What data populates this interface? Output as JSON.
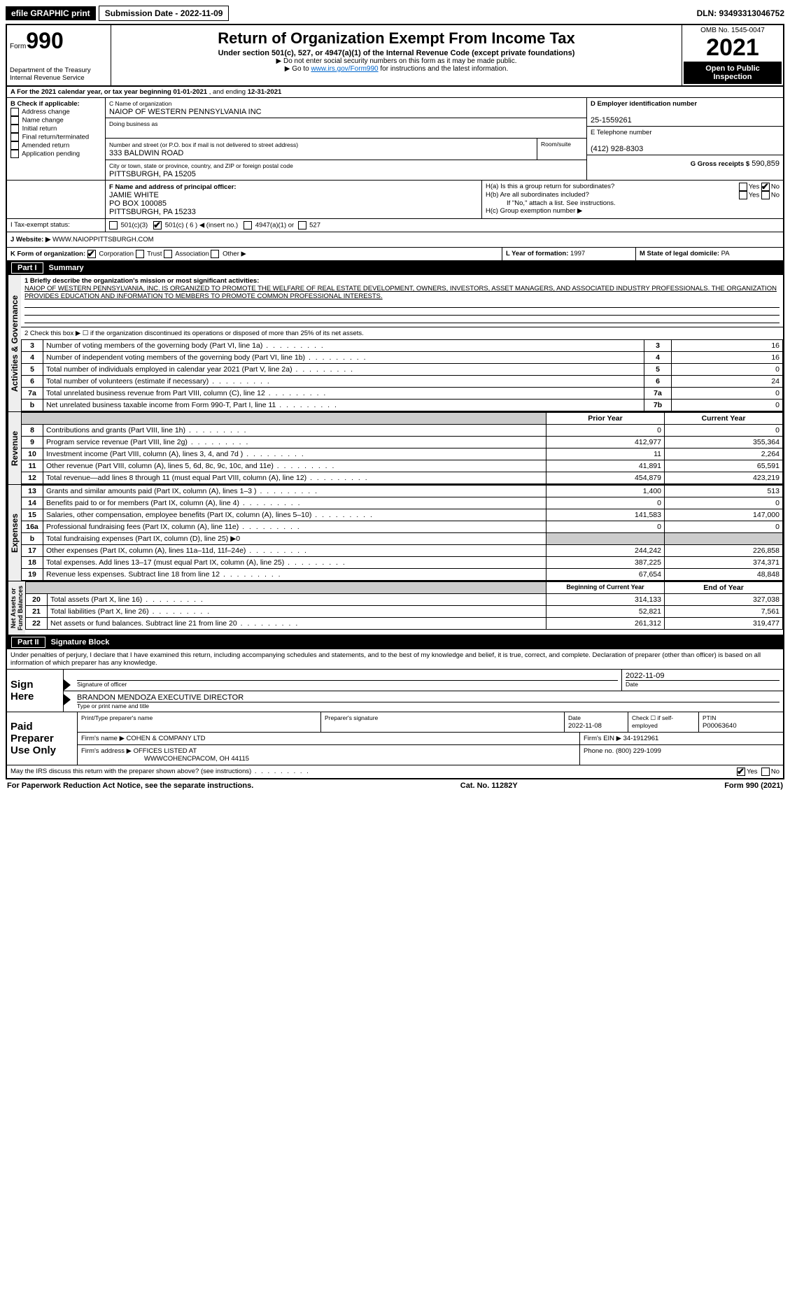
{
  "topbar": {
    "efile": "efile GRAPHIC print",
    "submission_label": "Submission Date - 2022-11-09",
    "dln": "DLN: 93493313046752"
  },
  "header": {
    "form_word": "Form",
    "form_number": "990",
    "dept": "Department of the Treasury",
    "irs": "Internal Revenue Service",
    "title": "Return of Organization Exempt From Income Tax",
    "subtitle": "Under section 501(c), 527, or 4947(a)(1) of the Internal Revenue Code (except private foundations)",
    "note1": "▶ Do not enter social security numbers on this form as it may be made public.",
    "note2": "▶ Go to ",
    "note2_link": "www.irs.gov/Form990",
    "note2_after": " for instructions and the latest information.",
    "omb": "OMB No. 1545-0047",
    "year": "2021",
    "open": "Open to Public Inspection"
  },
  "period": {
    "label_a": "A For the 2021 calendar year, or tax year beginning ",
    "begin": "01-01-2021",
    "mid": " , and ending ",
    "end": "12-31-2021"
  },
  "boxB": {
    "label": "B Check if applicable:",
    "items": [
      "Address change",
      "Name change",
      "Initial return",
      "Final return/terminated",
      "Amended return",
      "Application pending"
    ]
  },
  "boxC": {
    "name_label": "C Name of organization",
    "name": "NAIOP OF WESTERN PENNSYLVANIA INC",
    "dba_label": "Doing business as",
    "dba": "",
    "street_label": "Number and street (or P.O. box if mail is not delivered to street address)",
    "room_label": "Room/suite",
    "street": "333 BALDWIN ROAD",
    "city_label": "City or town, state or province, country, and ZIP or foreign postal code",
    "city": "PITTSBURGH, PA  15205"
  },
  "boxD": {
    "label": "D Employer identification number",
    "value": "25-1559261"
  },
  "boxE": {
    "label": "E Telephone number",
    "value": "(412) 928-8303"
  },
  "boxG": {
    "label": "G Gross receipts $",
    "value": "590,859"
  },
  "boxF": {
    "label": "F Name and address of principal officer:",
    "name": "JAMIE WHITE",
    "addr1": "PO BOX 100085",
    "addr2": "PITTSBURGH, PA  15233"
  },
  "boxH": {
    "a_label": "H(a)  Is this a group return for subordinates?",
    "a_yes": "Yes",
    "a_no": "No",
    "b_label": "H(b)  Are all subordinates included?",
    "b_note": "If \"No,\" attach a list. See instructions.",
    "c_label": "H(c)  Group exemption number ▶"
  },
  "boxI": {
    "label": "I Tax-exempt status:",
    "opts": [
      "501(c)(3)",
      "501(c) ( 6 ) ◀ (insert no.)",
      "4947(a)(1) or",
      "527"
    ]
  },
  "boxJ": {
    "label": "J Website: ▶",
    "value": "WWW.NAIOPPITTSBURGH.COM"
  },
  "boxK": {
    "label": "K Form of organization:",
    "opts": [
      "Corporation",
      "Trust",
      "Association",
      "Other ▶"
    ]
  },
  "boxL": {
    "label": "L Year of formation:",
    "value": "1997"
  },
  "boxM": {
    "label": "M State of legal domicile:",
    "value": "PA"
  },
  "part1": {
    "title": "Part I",
    "name": "Summary",
    "q1_label": "1 Briefly describe the organization's mission or most significant activities:",
    "q1_text": "NAIOP OF WESTERN PENNSYLVANIA, INC. IS ORGANIZED TO PROMOTE THE WELFARE OF REAL ESTATE DEVELOPMENT, OWNERS, INVESTORS, ASSET MANAGERS, AND ASSOCIATED INDUSTRY PROFESSIONALS. THE ORGANIZATION PROVIDES EDUCATION AND INFORMATION TO MEMBERS TO PROMOTE COMMON PROFESSIONAL INTERESTS.",
    "q2": "2  Check this box ▶ ☐ if the organization discontinued its operations or disposed of more than 25% of its net assets.",
    "lines_gov": [
      {
        "n": "3",
        "t": "Number of voting members of the governing body (Part VI, line 1a)",
        "box": "3",
        "v": "16"
      },
      {
        "n": "4",
        "t": "Number of independent voting members of the governing body (Part VI, line 1b)",
        "box": "4",
        "v": "16"
      },
      {
        "n": "5",
        "t": "Total number of individuals employed in calendar year 2021 (Part V, line 2a)",
        "box": "5",
        "v": "0"
      },
      {
        "n": "6",
        "t": "Total number of volunteers (estimate if necessary)",
        "box": "6",
        "v": "24"
      },
      {
        "n": "7a",
        "t": "Total unrelated business revenue from Part VIII, column (C), line 12",
        "box": "7a",
        "v": "0"
      },
      {
        "n": "b",
        "t": "Net unrelated business taxable income from Form 990-T, Part I, line 11",
        "box": "7b",
        "v": "0"
      }
    ],
    "col_prior": "Prior Year",
    "col_current": "Current Year",
    "revenue": [
      {
        "n": "8",
        "t": "Contributions and grants (Part VIII, line 1h)",
        "p": "0",
        "c": "0"
      },
      {
        "n": "9",
        "t": "Program service revenue (Part VIII, line 2g)",
        "p": "412,977",
        "c": "355,364"
      },
      {
        "n": "10",
        "t": "Investment income (Part VIII, column (A), lines 3, 4, and 7d )",
        "p": "11",
        "c": "2,264"
      },
      {
        "n": "11",
        "t": "Other revenue (Part VIII, column (A), lines 5, 6d, 8c, 9c, 10c, and 11e)",
        "p": "41,891",
        "c": "65,591"
      },
      {
        "n": "12",
        "t": "Total revenue—add lines 8 through 11 (must equal Part VIII, column (A), line 12)",
        "p": "454,879",
        "c": "423,219"
      }
    ],
    "expenses": [
      {
        "n": "13",
        "t": "Grants and similar amounts paid (Part IX, column (A), lines 1–3 )",
        "p": "1,400",
        "c": "513"
      },
      {
        "n": "14",
        "t": "Benefits paid to or for members (Part IX, column (A), line 4)",
        "p": "0",
        "c": "0"
      },
      {
        "n": "15",
        "t": "Salaries, other compensation, employee benefits (Part IX, column (A), lines 5–10)",
        "p": "141,583",
        "c": "147,000"
      },
      {
        "n": "16a",
        "t": "Professional fundraising fees (Part IX, column (A), line 11e)",
        "p": "0",
        "c": "0"
      },
      {
        "n": "b",
        "t": "Total fundraising expenses (Part IX, column (D), line 25) ▶0",
        "p": "",
        "c": "",
        "shade": true
      },
      {
        "n": "17",
        "t": "Other expenses (Part IX, column (A), lines 11a–11d, 11f–24e)",
        "p": "244,242",
        "c": "226,858"
      },
      {
        "n": "18",
        "t": "Total expenses. Add lines 13–17 (must equal Part IX, column (A), line 25)",
        "p": "387,225",
        "c": "374,371"
      },
      {
        "n": "19",
        "t": "Revenue less expenses. Subtract line 18 from line 12",
        "p": "67,654",
        "c": "48,848"
      }
    ],
    "col_begin": "Beginning of Current Year",
    "col_end": "End of Year",
    "netassets": [
      {
        "n": "20",
        "t": "Total assets (Part X, line 16)",
        "p": "314,133",
        "c": "327,038"
      },
      {
        "n": "21",
        "t": "Total liabilities (Part X, line 26)",
        "p": "52,821",
        "c": "7,561"
      },
      {
        "n": "22",
        "t": "Net assets or fund balances. Subtract line 21 from line 20",
        "p": "261,312",
        "c": "319,477"
      }
    ]
  },
  "part2": {
    "title": "Part II",
    "name": "Signature Block",
    "decl": "Under penalties of perjury, I declare that I have examined this return, including accompanying schedules and statements, and to the best of my knowledge and belief, it is true, correct, and complete. Declaration of preparer (other than officer) is based on all information of which preparer has any knowledge.",
    "sign_here": "Sign Here",
    "sig_officer": "Signature of officer",
    "sig_date": "Date",
    "sig_date_val": "2022-11-09",
    "sig_name": "BRANDON MENDOZA  EXECUTIVE DIRECTOR",
    "sig_name_label": "Type or print name and title",
    "paid": "Paid Preparer Use Only",
    "prep_name_label": "Print/Type preparer's name",
    "prep_sig_label": "Preparer's signature",
    "prep_date_label": "Date",
    "prep_date": "2022-11-08",
    "prep_check": "Check ☐ if self-employed",
    "ptin_label": "PTIN",
    "ptin": "P00063640",
    "firm_name_label": "Firm's name    ▶",
    "firm_name": "COHEN & COMPANY LTD",
    "firm_ein_label": "Firm's EIN ▶",
    "firm_ein": "34-1912961",
    "firm_addr_label": "Firm's address ▶",
    "firm_addr": "OFFICES LISTED AT",
    "firm_addr2": "WWWCOHENCPACOM, OH  44115",
    "firm_phone_label": "Phone no.",
    "firm_phone": "(800) 229-1099",
    "discuss": "May the IRS discuss this return with the preparer shown above? (see instructions)",
    "yes": "Yes",
    "no": "No"
  },
  "footer": {
    "left": "For Paperwork Reduction Act Notice, see the separate instructions.",
    "mid": "Cat. No. 11282Y",
    "right": "Form 990 (2021)"
  }
}
